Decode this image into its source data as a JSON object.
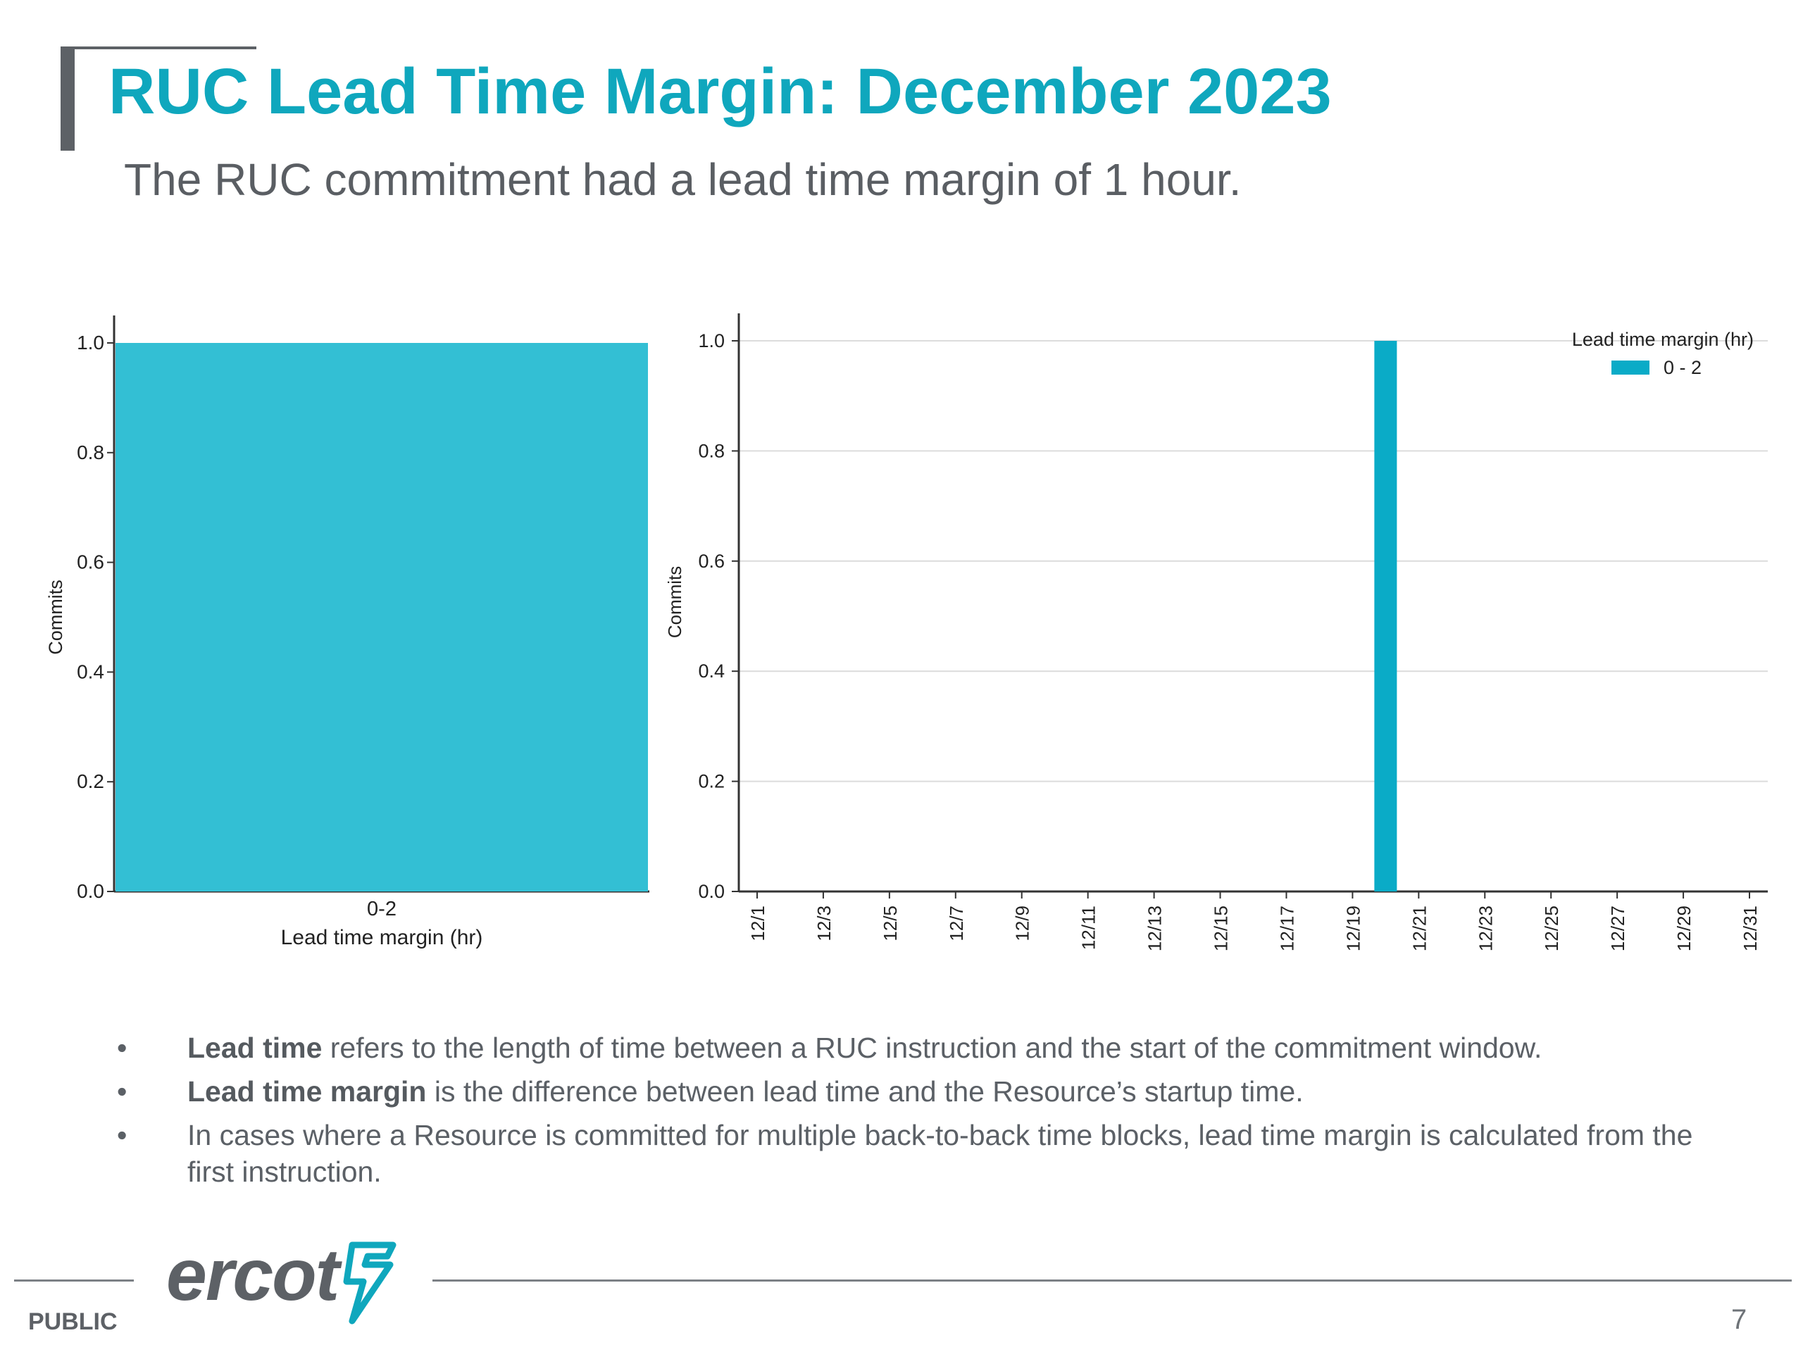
{
  "slide": {
    "title": "RUC Lead Time Margin: December 2023",
    "subtitle": "The RUC commitment had a lead time margin of 1 hour."
  },
  "bullets": [
    {
      "bold": "Lead time",
      "text": " refers to the length of time between a RUC instruction and the start of the commitment window."
    },
    {
      "bold": "Lead time margin",
      "text": " is the difference between lead time and the Resource’s startup time."
    },
    {
      "bold": "",
      "text": "In cases where a Resource is committed for multiple back-to-back time blocks, lead time margin is calculated from the first instruction."
    }
  ],
  "bullet_symbol": "•",
  "footer": {
    "logo_text": "ercot",
    "classification": "PUBLIC",
    "page_number": "7"
  },
  "colors": {
    "accent": "#0fa7bd",
    "bar_left": "#33bfd4",
    "bar_right": "#0aabc7",
    "text": "#555a5f"
  },
  "chart_data": [
    {
      "type": "bar",
      "categories": [
        "0-2"
      ],
      "values": [
        1.0
      ],
      "xlabel": "Lead time margin (hr)",
      "ylabel": "Commits",
      "ylim": [
        0,
        1.0
      ],
      "yticks": [
        "0.0",
        "0.2",
        "0.4",
        "0.6",
        "0.8",
        "1.0"
      ],
      "grid": false
    },
    {
      "type": "bar",
      "x_tick_labels": [
        "12/1",
        "12/3",
        "12/5",
        "12/7",
        "12/9",
        "12/11",
        "12/13",
        "12/15",
        "12/17",
        "12/19",
        "12/21",
        "12/23",
        "12/25",
        "12/27",
        "12/29",
        "12/31"
      ],
      "x_range": [
        "12/1",
        "12/31"
      ],
      "series": [
        {
          "name": "0 - 2",
          "x": "12/20",
          "value": 1.0
        }
      ],
      "ylabel": "Commits",
      "ylim": [
        0,
        1.0
      ],
      "yticks": [
        "0.0",
        "0.2",
        "0.4",
        "0.6",
        "0.8",
        "1.0"
      ],
      "grid": true,
      "legend": {
        "title": "Lead time margin (hr)",
        "placement": "top-right"
      }
    }
  ]
}
